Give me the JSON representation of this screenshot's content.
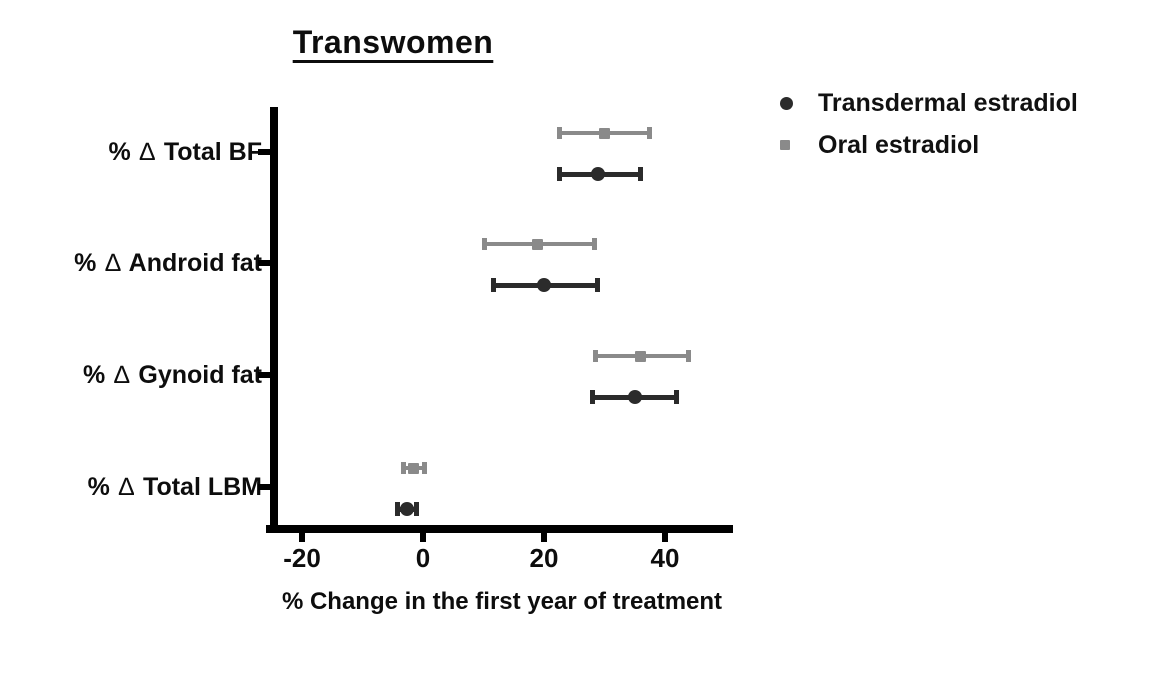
{
  "title": "Transwomen",
  "legend": {
    "position": "top-right",
    "items": [
      {
        "label": "Transdermal estradiol",
        "marker": "circle",
        "color": "#2b2b2b"
      },
      {
        "label": "Oral estradiol",
        "marker": "square",
        "color": "#8a8a8a"
      }
    ]
  },
  "colors": {
    "transdermal": "#2b2b2b",
    "oral": "#8a8a8a",
    "axis": "#000000",
    "text": "#0d0d0d"
  },
  "chart_data": {
    "type": "scatter",
    "subtype": "horizontal-dot-plot-with-error-bars",
    "title": "Transwomen",
    "xlabel": "% Change in the first year of treatment",
    "ylabel": "",
    "xlim": [
      -25,
      51
    ],
    "xticks": [
      -20,
      0,
      20,
      40
    ],
    "grid": false,
    "legend_position": "top-right",
    "categories": [
      "% ∆ Total BF",
      "% ∆ Android fat",
      "% ∆ Gynoid fat",
      "% ∆ Total LBM"
    ],
    "series": [
      {
        "name": "Transdermal estradiol",
        "marker": "circle",
        "color": "#2b2b2b",
        "values": [
          {
            "category": "% ∆ Total BF",
            "mean": 29,
            "lo": 22.5,
            "hi": 36
          },
          {
            "category": "% ∆ Android fat",
            "mean": 20,
            "lo": 11.5,
            "hi": 29
          },
          {
            "category": "% ∆ Gynoid fat",
            "mean": 35,
            "lo": 28,
            "hi": 42
          },
          {
            "category": "% ∆ Total LBM",
            "mean": -2.7,
            "lo": -4.3,
            "hi": -1
          }
        ]
      },
      {
        "name": "Oral estradiol",
        "marker": "square",
        "color": "#8a8a8a",
        "values": [
          {
            "category": "% ∆ Total BF",
            "mean": 30,
            "lo": 22.5,
            "hi": 37.5
          },
          {
            "category": "% ∆ Android fat",
            "mean": 19,
            "lo": 10,
            "hi": 28.5
          },
          {
            "category": "% ∆ Gynoid fat",
            "mean": 36,
            "lo": 28.5,
            "hi": 44
          },
          {
            "category": "% ∆ Total LBM",
            "mean": -1.6,
            "lo": -3.3,
            "hi": 0.3
          }
        ]
      }
    ]
  }
}
